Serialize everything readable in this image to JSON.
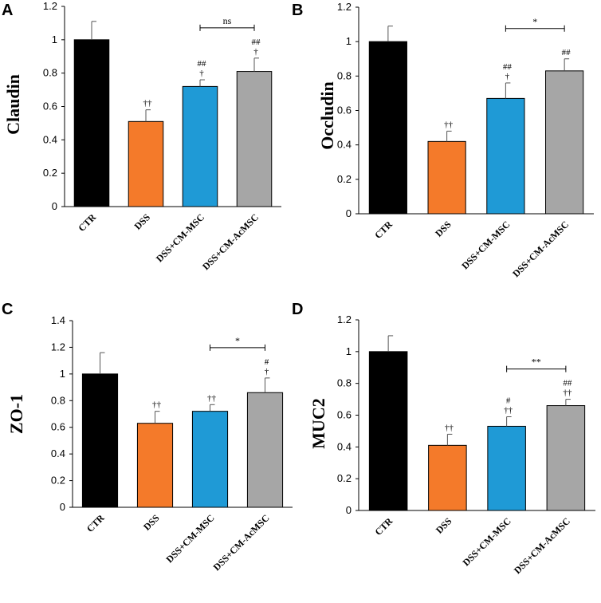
{
  "chart_data": [
    {
      "type": "bar",
      "panel": "A",
      "ylabel": "Claudin",
      "categories": [
        "CTR",
        "DSS",
        "DSS+CM-MSC",
        "DSS+CM-AcMSC"
      ],
      "values": [
        1.0,
        0.51,
        0.72,
        0.81
      ],
      "errors": [
        0.11,
        0.07,
        0.04,
        0.08
      ],
      "colors": [
        "#000000",
        "#F47A2A",
        "#1F9AD6",
        "#A6A6A6"
      ],
      "ylim": [
        0,
        1.2
      ],
      "ticks": [
        0,
        0.2,
        0.4,
        0.6,
        0.8,
        1.0,
        1.2
      ],
      "tick_labels": [
        "0",
        "0.2",
        "0.4",
        "0.6",
        "0.8",
        "1",
        "1.2"
      ],
      "annotations": [
        [],
        [
          "††"
        ],
        [
          "##",
          "†"
        ],
        [
          "##",
          "†"
        ]
      ],
      "comparison": {
        "from": 2,
        "to": 3,
        "label": "ns"
      }
    },
    {
      "type": "bar",
      "panel": "B",
      "ylabel": "Occludin",
      "categories": [
        "CTR",
        "DSS",
        "DSS+CM-MSC",
        "DSS+CM-AcMSC"
      ],
      "values": [
        1.0,
        0.42,
        0.67,
        0.83
      ],
      "errors": [
        0.09,
        0.06,
        0.09,
        0.07
      ],
      "colors": [
        "#000000",
        "#F47A2A",
        "#1F9AD6",
        "#A6A6A6"
      ],
      "ylim": [
        0,
        1.2
      ],
      "ticks": [
        0,
        0.2,
        0.4,
        0.6,
        0.8,
        1.0,
        1.2
      ],
      "tick_labels": [
        "0",
        "0.2",
        "0.4",
        "0.6",
        "0.8",
        "1",
        "1.2"
      ],
      "annotations": [
        [],
        [
          "††"
        ],
        [
          "##",
          "†"
        ],
        [
          "##"
        ]
      ],
      "comparison": {
        "from": 2,
        "to": 3,
        "label": "*"
      }
    },
    {
      "type": "bar",
      "panel": "C",
      "ylabel": "ZO-1",
      "categories": [
        "CTR",
        "DSS",
        "DSS+CM-MSC",
        "DSS+CM-AcMSC"
      ],
      "values": [
        1.0,
        0.63,
        0.72,
        0.86
      ],
      "errors": [
        0.16,
        0.09,
        0.05,
        0.11
      ],
      "colors": [
        "#000000",
        "#F47A2A",
        "#1F9AD6",
        "#A6A6A6"
      ],
      "ylim": [
        0,
        1.4
      ],
      "ticks": [
        0,
        0.2,
        0.4,
        0.6,
        0.8,
        1.0,
        1.2,
        1.4
      ],
      "tick_labels": [
        "0",
        "0.2",
        "0.4",
        "0.6",
        "0.8",
        "1",
        "1.2",
        "1.4"
      ],
      "annotations": [
        [],
        [
          "††"
        ],
        [
          "††"
        ],
        [
          "#",
          "†"
        ]
      ],
      "comparison": {
        "from": 2,
        "to": 3,
        "label": "*"
      }
    },
    {
      "type": "bar",
      "panel": "D",
      "ylabel": "MUC2",
      "categories": [
        "CTR",
        "DSS",
        "DSS+CM-MSC",
        "DSS+CM-AcMSC"
      ],
      "values": [
        1.0,
        0.41,
        0.53,
        0.66
      ],
      "errors": [
        0.1,
        0.07,
        0.06,
        0.04
      ],
      "colors": [
        "#000000",
        "#F47A2A",
        "#1F9AD6",
        "#A6A6A6"
      ],
      "ylim": [
        0,
        1.2
      ],
      "ticks": [
        0,
        0.2,
        0.4,
        0.6,
        0.8,
        1.0,
        1.2
      ],
      "tick_labels": [
        "0",
        "0.2",
        "0.4",
        "0.6",
        "0.8",
        "1",
        "1.2"
      ],
      "annotations": [
        [],
        [
          "††"
        ],
        [
          "#",
          "††"
        ],
        [
          "##",
          "††"
        ]
      ],
      "comparison": {
        "from": 2,
        "to": 3,
        "label": "**"
      }
    }
  ]
}
